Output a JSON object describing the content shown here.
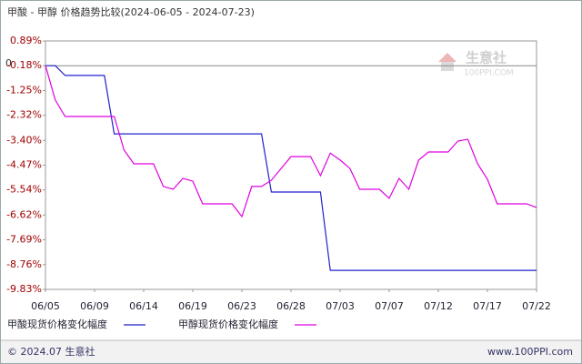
{
  "chart_data": {
    "type": "line",
    "title": "甲酸 - 甲醇  价格趋势比较(2024-06-05 - 2024-07-23)",
    "zero_label": "0",
    "categories": [
      "06/05",
      null,
      null,
      null,
      null,
      "06/09",
      null,
      null,
      null,
      null,
      "06/14",
      null,
      null,
      null,
      null,
      "06/19",
      null,
      null,
      null,
      null,
      "06/23",
      null,
      null,
      null,
      null,
      "06/28",
      null,
      null,
      null,
      null,
      "07/03",
      null,
      null,
      null,
      null,
      "07/07",
      null,
      null,
      null,
      null,
      "07/12",
      null,
      null,
      null,
      null,
      "07/17",
      null,
      null,
      null,
      null,
      "07/22"
    ],
    "series": [
      {
        "name": "甲酸现货价格变化幅度",
        "color": "#2222cc",
        "values": [
          -0.18,
          -0.18,
          -0.6,
          -0.6,
          -0.6,
          -0.6,
          -0.6,
          -3.12,
          -3.12,
          -3.12,
          -3.12,
          -3.12,
          -3.12,
          -3.12,
          -3.12,
          -3.12,
          -3.12,
          -3.12,
          -3.12,
          -3.12,
          -3.12,
          -3.12,
          -3.12,
          -5.63,
          -5.63,
          -5.63,
          -5.63,
          -5.63,
          -5.63,
          -9.01,
          -9.01,
          -9.01,
          -9.01,
          -9.01,
          -9.01,
          -9.01,
          -9.01,
          -9.01,
          -9.01,
          -9.01,
          -9.01,
          -9.01,
          -9.01,
          -9.01,
          -9.01,
          -9.01,
          -9.01,
          -9.01,
          -9.01,
          -9.01,
          -9.01
        ]
      },
      {
        "name": "甲醇现货价格变化幅度",
        "color": "#e000e0",
        "values": [
          -0.18,
          -1.66,
          -2.37,
          -2.37,
          -2.37,
          -2.37,
          -2.37,
          -2.37,
          -3.82,
          -4.41,
          -4.41,
          -4.41,
          -5.39,
          -5.51,
          -5.04,
          -5.16,
          -6.14,
          -6.14,
          -6.14,
          -6.14,
          -6.69,
          -5.39,
          -5.39,
          -5.12,
          -4.61,
          -4.1,
          -4.1,
          -4.1,
          -4.92,
          -3.95,
          -4.25,
          -4.61,
          -5.51,
          -5.51,
          -5.51,
          -5.9,
          -5.04,
          -5.51,
          -4.25,
          -3.9,
          -3.9,
          -3.9,
          -3.43,
          -3.35,
          -4.41,
          -5.08,
          -6.14,
          -6.14,
          -6.14,
          -6.14,
          -6.3
        ]
      }
    ],
    "ylim": [
      -9.83,
      0.89
    ],
    "yticks": [
      {
        "value": 0.89,
        "label": "0.89%"
      },
      {
        "value": -0.18,
        "label": "-0.18%"
      },
      {
        "value": -1.25,
        "label": "-1.25%"
      },
      {
        "value": -2.32,
        "label": "-2.32%"
      },
      {
        "value": -3.4,
        "label": "-3.40%"
      },
      {
        "value": -4.47,
        "label": "-4.47%"
      },
      {
        "value": -5.54,
        "label": "-5.54%"
      },
      {
        "value": -6.62,
        "label": "-6.62%"
      },
      {
        "value": -7.69,
        "label": "-7.69%"
      },
      {
        "value": -8.76,
        "label": "-8.76%"
      },
      {
        "value": -9.83,
        "label": "-9.83%"
      }
    ],
    "watermark": {
      "name": "生意社",
      "site": "100PPI.COM"
    },
    "footer": {
      "left": "© 2024.07 生意社",
      "right": "www.100PPI.com"
    }
  }
}
